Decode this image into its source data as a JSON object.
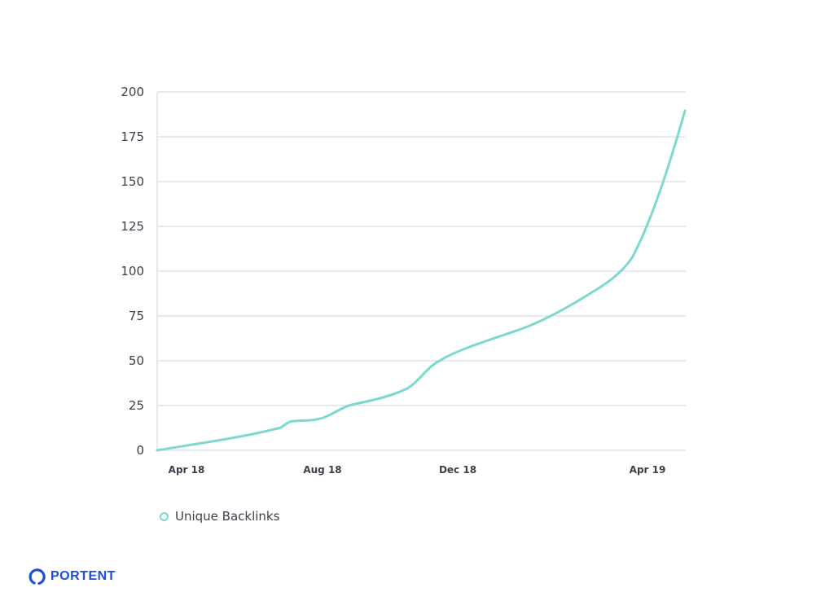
{
  "chart_data": {
    "type": "line",
    "title": "",
    "xlabel": "",
    "ylabel": "",
    "ylim": [
      0,
      200
    ],
    "yticks": [
      0,
      25,
      50,
      75,
      100,
      125,
      150,
      175,
      200
    ],
    "xticks": [
      "Apr 18",
      "Aug 18",
      "Dec 18",
      "Apr 19"
    ],
    "grid": true,
    "legend_position": "bottom-left",
    "series": [
      {
        "name": "Unique Backlinks",
        "color": "#7dd9d0",
        "x": [
          "Apr 18",
          "May 18",
          "Jun 18",
          "Jul 18",
          "Aug 18",
          "Sep 18",
          "Oct 18",
          "Nov 18",
          "Dec 18",
          "Jan 19",
          "Feb 19",
          "Mar 19",
          "Apr 19",
          "May 19"
        ],
        "values": [
          0,
          4,
          8,
          13,
          18,
          25,
          30,
          40,
          52,
          62,
          74,
          90,
          130,
          190
        ]
      }
    ]
  },
  "legend": {
    "label": "Unique Backlinks",
    "color": "#7dd9d0"
  },
  "brand": {
    "name": "PORTENT",
    "color": "#1a4fd8"
  }
}
